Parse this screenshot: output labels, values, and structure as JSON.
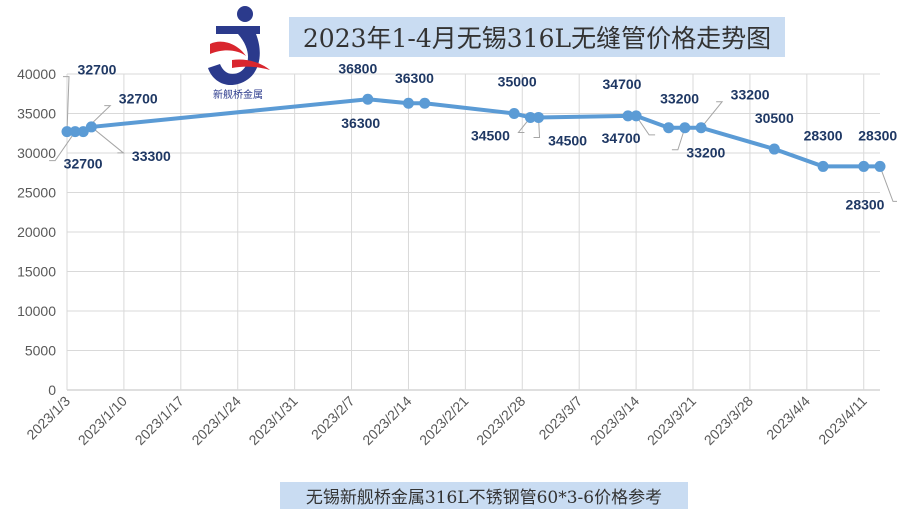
{
  "chart_data": {
    "type": "line",
    "title": "2023年1-4月无锡316L无缝管价格走势图",
    "subtitle": "无锡新舰桥金属316L不锈钢管60*3-6价格参考",
    "series_color": "#5b9bd5",
    "ylim": [
      0,
      40000
    ],
    "yticks": [
      0,
      5000,
      10000,
      15000,
      20000,
      25000,
      30000,
      35000,
      40000
    ],
    "xticks": [
      "2023/1/3",
      "2023/1/10",
      "2023/1/17",
      "2023/1/24",
      "2023/1/31",
      "2023/2/7",
      "2023/2/14",
      "2023/2/21",
      "2023/2/28",
      "2023/3/7",
      "2023/3/14",
      "2023/3/21",
      "2023/3/28",
      "2023/4/4",
      "2023/4/11"
    ],
    "grid": true,
    "points": [
      {
        "x": "2023/1/3",
        "y": 32700
      },
      {
        "x": "2023/1/4",
        "y": 32700
      },
      {
        "x": "2023/1/5",
        "y": 32700
      },
      {
        "x": "2023/1/6",
        "y": 33300
      },
      {
        "x": "2023/2/9",
        "y": 36800
      },
      {
        "x": "2023/2/14",
        "y": 36300
      },
      {
        "x": "2023/2/16",
        "y": 36300
      },
      {
        "x": "2023/2/27",
        "y": 35000
      },
      {
        "x": "2023/3/1",
        "y": 34500
      },
      {
        "x": "2023/3/2",
        "y": 34500
      },
      {
        "x": "2023/3/13",
        "y": 34700
      },
      {
        "x": "2023/3/14",
        "y": 34700
      },
      {
        "x": "2023/3/18",
        "y": 33200
      },
      {
        "x": "2023/3/20",
        "y": 33200
      },
      {
        "x": "2023/3/22",
        "y": 33200
      },
      {
        "x": "2023/3/31",
        "y": 30500
      },
      {
        "x": "2023/4/6",
        "y": 28300
      },
      {
        "x": "2023/4/11",
        "y": 28300
      },
      {
        "x": "2023/4/13",
        "y": 28300
      }
    ]
  },
  "logo": {
    "text": "新舰桥金属",
    "colors": {
      "blue": "#2b3a8c",
      "red": "#d9262e"
    }
  }
}
